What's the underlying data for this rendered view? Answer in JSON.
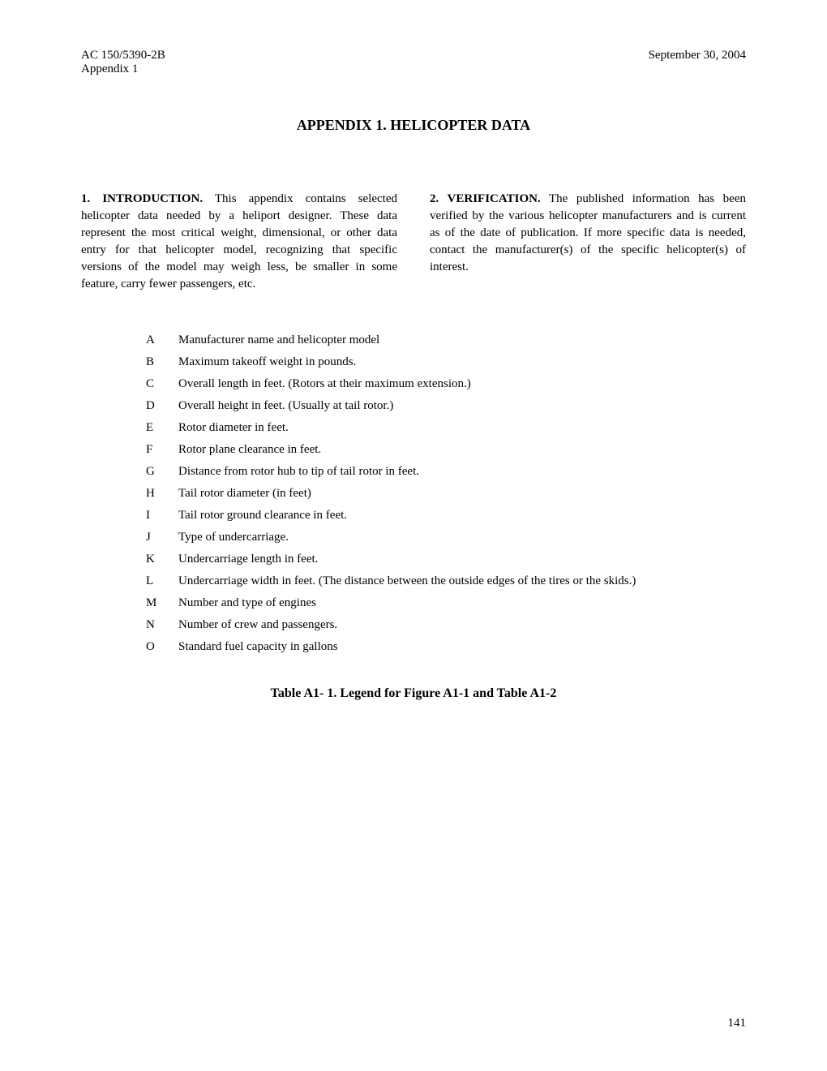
{
  "header": {
    "doc_number": "AC 150/5390-2B",
    "appendix_label": "Appendix 1",
    "date": "September 30, 2004"
  },
  "title": "APPENDIX 1.    HELICOPTER DATA",
  "sections": {
    "intro": {
      "heading": "1.  INTRODUCTION.",
      "body": "  This appendix contains selected helicopter data needed by a heliport designer.  These data represent the most critical weight, dimensional, or other data entry for that helicopter model, recognizing that specific versions of the model may weigh less, be smaller in some feature, carry fewer passengers, etc."
    },
    "verification": {
      "heading": "2.  VERIFICATION.",
      "body": "  The published information has been verified by the various helicopter manufacturers and is current as of the date of publication.  If more specific data is needed, contact the manufacturer(s) of the specific helicopter(s) of interest."
    }
  },
  "legend": [
    {
      "letter": "A",
      "desc": "Manufacturer name and helicopter model"
    },
    {
      "letter": "B",
      "desc": "Maximum takeoff weight in pounds."
    },
    {
      "letter": "C",
      "desc": "Overall length in feet.  (Rotors at their maximum extension.)"
    },
    {
      "letter": "D",
      "desc": "Overall height in feet.  (Usually at tail rotor.)"
    },
    {
      "letter": "E",
      "desc": "Rotor diameter in feet."
    },
    {
      "letter": "F",
      "desc": "Rotor plane clearance in feet."
    },
    {
      "letter": "G",
      "desc": "Distance from rotor hub to tip of tail rotor in feet."
    },
    {
      "letter": "H",
      "desc": "Tail rotor diameter (in feet)"
    },
    {
      "letter": "I",
      "desc": "Tail rotor ground clearance in feet."
    },
    {
      "letter": "J",
      "desc": "Type of undercarriage."
    },
    {
      "letter": "K",
      "desc": "Undercarriage length in feet."
    },
    {
      "letter": "L",
      "desc": "Undercarriage width in feet.  (The distance between the outside edges of the tires or the skids.)"
    },
    {
      "letter": "M",
      "desc": "Number and type of engines"
    },
    {
      "letter": "N",
      "desc": "Number of crew and passengers."
    },
    {
      "letter": "O",
      "desc": "Standard fuel capacity in gallons"
    }
  ],
  "caption": "Table A1- 1.  Legend for Figure A1-1 and Table A1-2",
  "page_number": "141"
}
